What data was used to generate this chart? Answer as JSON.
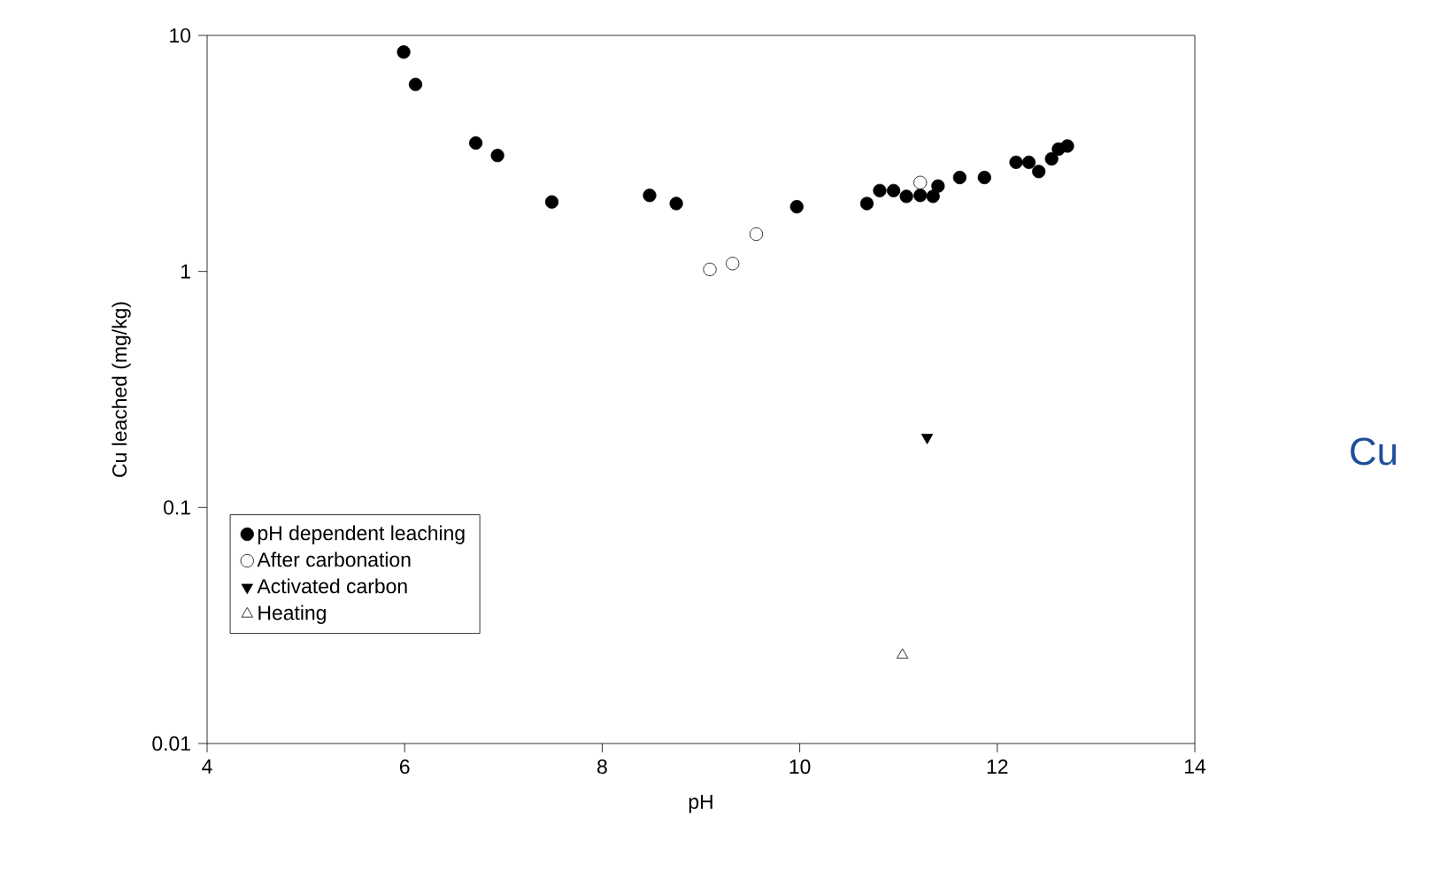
{
  "chart_data": {
    "type": "scatter",
    "xlabel": "pH",
    "ylabel": "Cu leached (mg/kg)",
    "log": "y",
    "xlim": [
      4,
      14
    ],
    "xticks": [
      4,
      6,
      8,
      10,
      12,
      14
    ],
    "ylim": [
      0.01,
      10
    ],
    "yticks": [
      0.01,
      0.1,
      1,
      10
    ],
    "legend": "bottom left",
    "grid": false,
    "annotations": [
      "Cu"
    ],
    "series": [
      {
        "name": "pH dependent leaching",
        "color": "#000000",
        "marker": "circle",
        "x": [
          5.99,
          6.11,
          6.72,
          6.94,
          7.49,
          8.48,
          8.75,
          9.97,
          10.68,
          10.81,
          10.95,
          11.08,
          11.22,
          11.35,
          11.4,
          11.62,
          11.87,
          12.19,
          12.32,
          12.42,
          12.55,
          12.62,
          12.71
        ],
        "values": [
          8.5,
          6.2,
          3.5,
          3.1,
          1.97,
          2.1,
          1.94,
          1.88,
          1.94,
          2.2,
          2.2,
          2.08,
          2.1,
          2.08,
          2.3,
          2.5,
          2.5,
          2.9,
          2.9,
          2.65,
          3.0,
          3.3,
          3.4
        ]
      },
      {
        "name": "After carbonation",
        "color": "#ffffff",
        "marker": "circle",
        "x": [
          9.09,
          9.32,
          9.56,
          11.22
        ],
        "values": [
          1.02,
          1.08,
          1.44,
          2.38
        ]
      },
      {
        "name": "Activated carbon",
        "color": "#000000",
        "marker": "triangle",
        "x": [
          11.29
        ],
        "values": [
          0.198
        ]
      },
      {
        "name": "Heating",
        "color": "#ffffff",
        "marker": "triangle",
        "x": [
          11.04
        ],
        "values": [
          0.0237
        ]
      }
    ]
  }
}
